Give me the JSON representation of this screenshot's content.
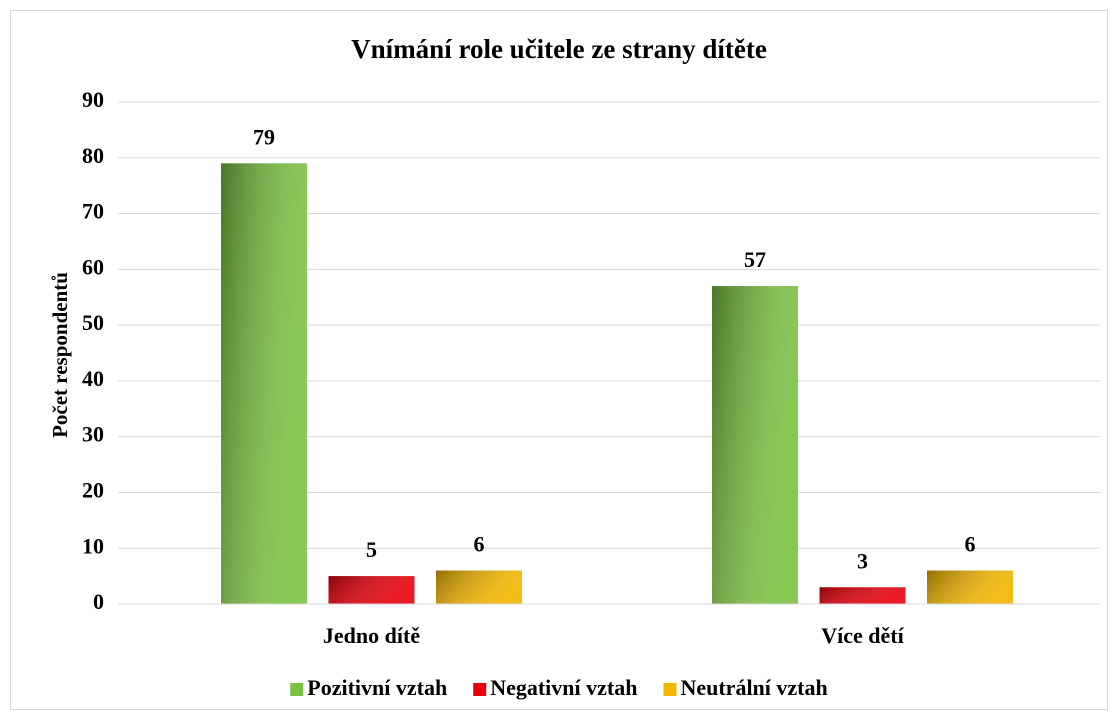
{
  "chart_data": {
    "type": "bar",
    "title": "Vnímání role učitele ze strany dítěte",
    "y_label": "Počet respondentů",
    "categories": [
      "Jedno dítě",
      "Více dětí"
    ],
    "series": [
      {
        "name": "Pozitivní vztah",
        "color": "#7cc242",
        "values": [
          79,
          57
        ]
      },
      {
        "name": "Negativní vztah",
        "color": "#e8000b",
        "values": [
          5,
          3
        ]
      },
      {
        "name": "Neutrální vztah",
        "color": "#f2b600",
        "values": [
          6,
          6
        ]
      }
    ],
    "ylim": [
      0,
      90
    ],
    "yticks": [
      0,
      10,
      20,
      30,
      40,
      50,
      60,
      70,
      80,
      90
    ],
    "grid": true,
    "legend": "bottom"
  }
}
